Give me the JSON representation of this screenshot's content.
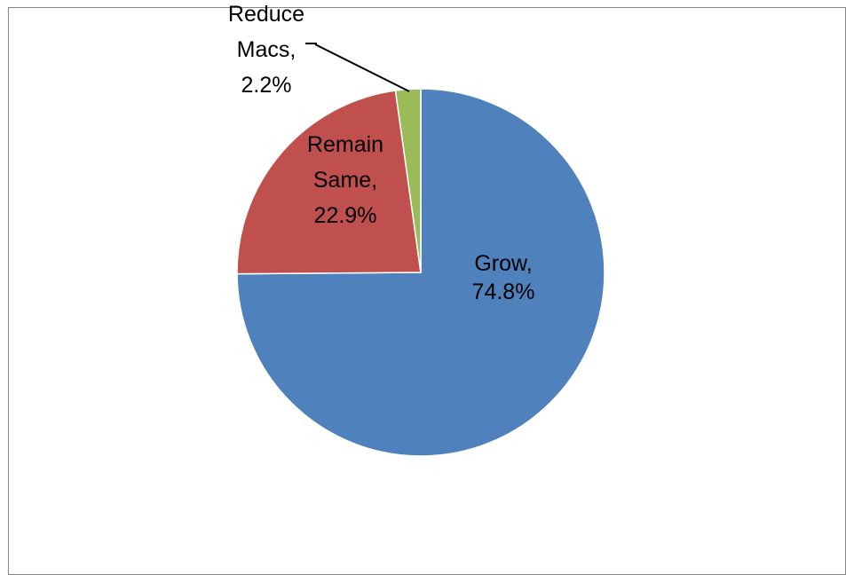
{
  "chart_data": {
    "type": "pie",
    "title": "",
    "start_angle_deg": 0,
    "direction": "clockwise",
    "slices": [
      {
        "name": "Grow",
        "value": 74.8,
        "label_lines": [
          "Grow,",
          "74.8%"
        ],
        "color": "#4F81BD",
        "slice_border": "#ffffff"
      },
      {
        "name": "Remain Same",
        "value": 22.9,
        "label_lines": [
          "Remain",
          "Same,",
          "22.9%"
        ],
        "color": "#C0504D",
        "slice_border": "#ffffff"
      },
      {
        "name": "Reduce Macs",
        "value": 2.2,
        "label_lines": [
          "Reduce",
          "Macs,",
          "2.2%"
        ],
        "color": "#9BBB59",
        "slice_border": "#ffffff"
      }
    ],
    "legend": "none",
    "frame_border_color": "#868686"
  }
}
